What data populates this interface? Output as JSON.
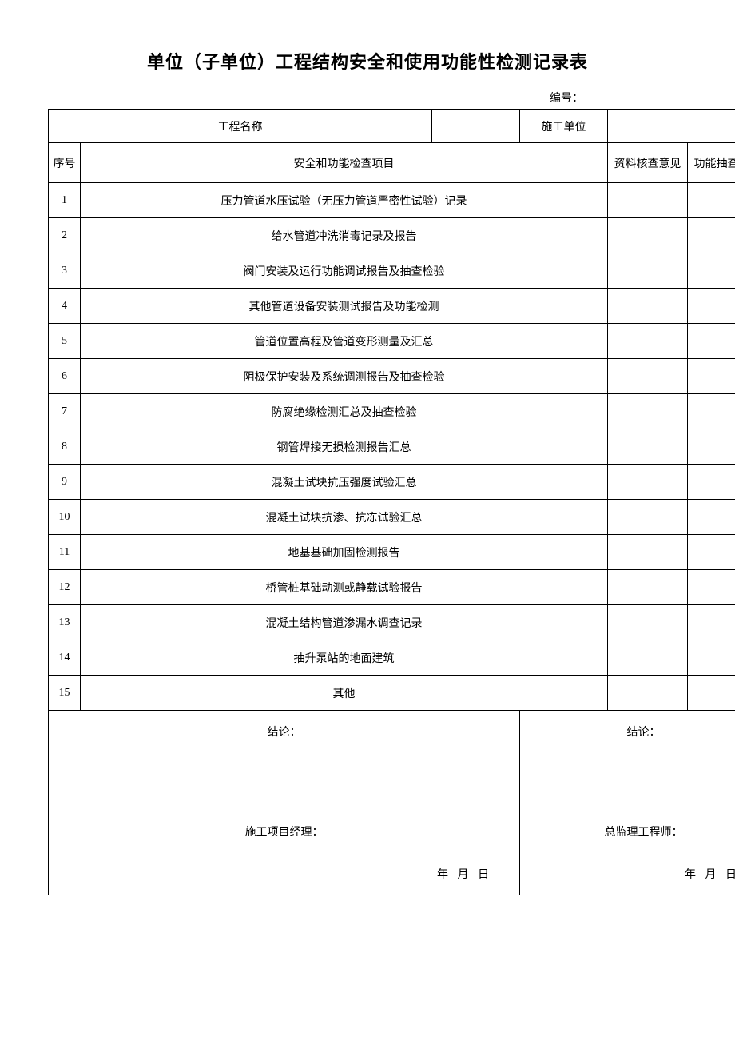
{
  "title": "单位（子单位）工程结构安全和使用功能性检测记录表",
  "serial_label": "编号：",
  "header": {
    "project_name_label": "工程名称",
    "project_name_value": "",
    "construction_unit_label": "施工单位",
    "construction_unit_value": ""
  },
  "columns": {
    "seq": "序号",
    "item": "安全和功能检查项目",
    "review": "资料核查意见",
    "result": "功能抽查结果"
  },
  "rows": [
    {
      "seq": "1",
      "item": "压力管道水压试验（无压力管道严密性试验）记录",
      "review": "",
      "result": ""
    },
    {
      "seq": "2",
      "item": "给水管道冲洗消毒记录及报告",
      "review": "",
      "result": ""
    },
    {
      "seq": "3",
      "item": "阀门安装及运行功能调试报告及抽查检验",
      "review": "",
      "result": ""
    },
    {
      "seq": "4",
      "item": "其他管道设备安装测试报告及功能检测",
      "review": "",
      "result": ""
    },
    {
      "seq": "5",
      "item": "管道位置高程及管道变形测量及汇总",
      "review": "",
      "result": ""
    },
    {
      "seq": "6",
      "item": "阴极保护安装及系统调测报告及抽查检验",
      "review": "",
      "result": ""
    },
    {
      "seq": "7",
      "item": "防腐绝缘检测汇总及抽查检验",
      "review": "",
      "result": ""
    },
    {
      "seq": "8",
      "item": "钢管焊接无损检测报告汇总",
      "review": "",
      "result": ""
    },
    {
      "seq": "9",
      "item": "混凝土试块抗压强度试验汇总",
      "review": "",
      "result": ""
    },
    {
      "seq": "10",
      "item": "混凝土试块抗渗、抗冻试验汇总",
      "review": "",
      "result": ""
    },
    {
      "seq": "11",
      "item": "地基基础加固检测报告",
      "review": "",
      "result": ""
    },
    {
      "seq": "12",
      "item": "桥管桩基础动测或静载试验报告",
      "review": "",
      "result": ""
    },
    {
      "seq": "13",
      "item": "混凝土结构管道渗漏水调查记录",
      "review": "",
      "result": ""
    },
    {
      "seq": "14",
      "item": "抽升泵站的地面建筑",
      "review": "",
      "result": ""
    },
    {
      "seq": "15",
      "item": "其他",
      "review": "",
      "result": ""
    }
  ],
  "conclusion": {
    "left_label": "结论：",
    "left_sign": "施工项目经理：",
    "right_label": "结论：",
    "right_sign": "总监理工程师：",
    "date": "年  月  日"
  }
}
